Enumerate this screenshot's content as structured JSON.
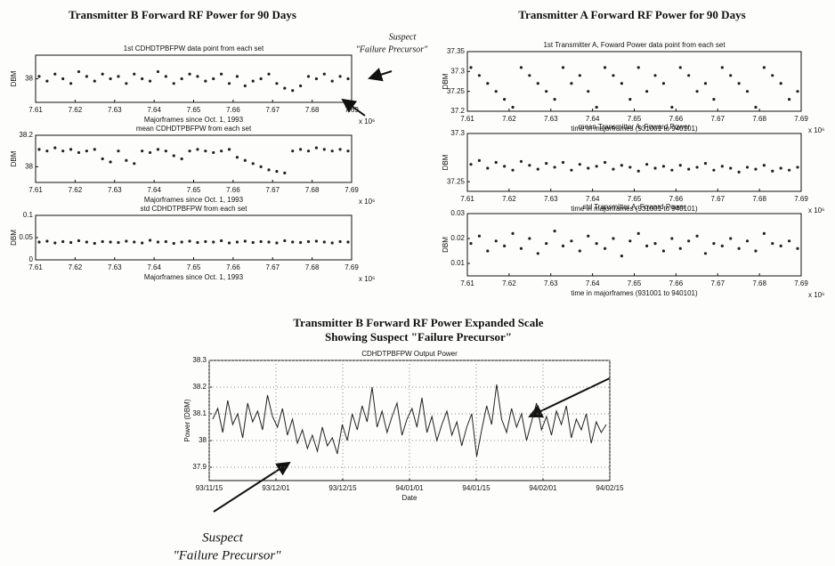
{
  "group_titles": [
    "Transmitter B Forward RF Power for 90 Days",
    "Transmitter A Forward RF Power for 90 Days",
    "Transmitter B Forward RF Power Expanded Scale",
    "Showing Suspect \"Failure Precursor\""
  ],
  "annotations": [
    "Suspect",
    "\"Failure Precursor\"",
    "Suspect",
    "\"Failure Precursor\""
  ],
  "chart_data": [
    {
      "type": "scatter",
      "title": "1st CDHDTPBFPW data point from each set",
      "ylabel": "DBM",
      "xlabel": "Majorframes since Oct. 1, 1993",
      "x_exponent": "x 10⁶",
      "xlim": [
        7.61,
        7.69
      ],
      "xticks": [
        7.61,
        7.62,
        7.63,
        7.64,
        7.65,
        7.66,
        7.67,
        7.68,
        7.69
      ],
      "ylim": [
        37.9,
        38.1
      ],
      "yticks": [
        38
      ],
      "color": "#222",
      "values": [
        38.01,
        37.99,
        38.02,
        38.0,
        37.98,
        38.03,
        38.01,
        37.99,
        38.02,
        38.0,
        38.01,
        37.98,
        38.02,
        38.0,
        37.99,
        38.03,
        38.01,
        37.98,
        38.0,
        38.02,
        38.01,
        37.99,
        38.0,
        38.02,
        37.98,
        38.01,
        37.97,
        37.99,
        38.0,
        38.02,
        37.98,
        37.96,
        37.95,
        37.97,
        38.01,
        38.0,
        38.02,
        37.99,
        38.01,
        38.0
      ]
    },
    {
      "type": "scatter",
      "title": "mean CDHDTPBFPW from each set",
      "ylabel": "DBM",
      "xlabel": "Majorframes since Oct. 1, 1993",
      "x_exponent": "x 10⁶",
      "xlim": [
        7.61,
        7.69
      ],
      "xticks": [
        7.61,
        7.62,
        7.63,
        7.64,
        7.65,
        7.66,
        7.67,
        7.68,
        7.69
      ],
      "ylim": [
        37.9,
        38.2
      ],
      "yticks": [
        38,
        38.2
      ],
      "color": "#222",
      "values": [
        38.11,
        38.1,
        38.12,
        38.1,
        38.11,
        38.09,
        38.1,
        38.11,
        38.05,
        38.03,
        38.1,
        38.04,
        38.02,
        38.1,
        38.09,
        38.11,
        38.1,
        38.07,
        38.05,
        38.1,
        38.11,
        38.1,
        38.09,
        38.1,
        38.11,
        38.06,
        38.04,
        38.02,
        38.0,
        37.98,
        37.97,
        37.96,
        38.1,
        38.11,
        38.1,
        38.12,
        38.11,
        38.1,
        38.11,
        38.1
      ]
    },
    {
      "type": "scatter",
      "title": "std CDHDTPBFPW from each set",
      "ylabel": "DBM",
      "xlabel": "Majorframes since Oct. 1, 1993",
      "x_exponent": "x 10⁶",
      "xlim": [
        7.61,
        7.69
      ],
      "xticks": [
        7.61,
        7.62,
        7.63,
        7.64,
        7.65,
        7.66,
        7.67,
        7.68,
        7.69
      ],
      "ylim": [
        0,
        0.1
      ],
      "yticks": [
        0,
        0.05,
        0.1
      ],
      "color": "#222",
      "values": [
        0.04,
        0.042,
        0.038,
        0.041,
        0.039,
        0.043,
        0.04,
        0.037,
        0.041,
        0.04,
        0.039,
        0.042,
        0.04,
        0.038,
        0.044,
        0.04,
        0.041,
        0.037,
        0.04,
        0.042,
        0.039,
        0.041,
        0.04,
        0.043,
        0.038,
        0.04,
        0.042,
        0.039,
        0.041,
        0.04,
        0.038,
        0.043,
        0.04,
        0.039,
        0.041,
        0.042,
        0.04,
        0.038,
        0.041,
        0.04
      ]
    },
    {
      "type": "scatter",
      "title": "1st Transmitter A, Foward Power data point from each set",
      "ylabel": "DBM",
      "xlabel": "time in majorframes (931001 to 940101)",
      "x_exponent": "x 10⁶",
      "xlim": [
        7.61,
        7.69
      ],
      "xticks": [
        7.61,
        7.62,
        7.63,
        7.64,
        7.65,
        7.66,
        7.67,
        7.68,
        7.69
      ],
      "ylim": [
        37.2,
        37.35
      ],
      "yticks": [
        37.2,
        37.25,
        37.3,
        37.35
      ],
      "color": "#222",
      "values": [
        37.31,
        37.29,
        37.27,
        37.25,
        37.23,
        37.21,
        37.31,
        37.29,
        37.27,
        37.25,
        37.23,
        37.31,
        37.27,
        37.29,
        37.25,
        37.21,
        37.31,
        37.29,
        37.27,
        37.23,
        37.31,
        37.25,
        37.29,
        37.27,
        37.21,
        37.31,
        37.29,
        37.25,
        37.27,
        37.23,
        37.31,
        37.29,
        37.27,
        37.25,
        37.21,
        37.31,
        37.29,
        37.27,
        37.23,
        37.25
      ]
    },
    {
      "type": "scatter",
      "title": "mean Transmitter A, Foward Power",
      "ylabel": "DBM",
      "xlabel": "time in majorframes (931001 to 940101)",
      "x_exponent": "x 10⁶",
      "xlim": [
        7.61,
        7.69
      ],
      "xticks": [
        7.61,
        7.62,
        7.63,
        7.64,
        7.65,
        7.66,
        7.67,
        7.68,
        7.69
      ],
      "ylim": [
        37.24,
        37.3
      ],
      "yticks": [
        37.25,
        37.3
      ],
      "color": "#222",
      "values": [
        37.268,
        37.272,
        37.264,
        37.27,
        37.266,
        37.262,
        37.271,
        37.267,
        37.263,
        37.269,
        37.265,
        37.27,
        37.262,
        37.268,
        37.264,
        37.266,
        37.27,
        37.263,
        37.267,
        37.265,
        37.261,
        37.268,
        37.264,
        37.266,
        37.262,
        37.267,
        37.263,
        37.265,
        37.269,
        37.262,
        37.266,
        37.264,
        37.26,
        37.265,
        37.263,
        37.267,
        37.261,
        37.264,
        37.262,
        37.265
      ]
    },
    {
      "type": "scatter",
      "title": "std Transmitter A, Foward Power",
      "ylabel": "DBM",
      "xlabel": "time in majorframes (931001 to 940101)",
      "x_exponent": "x 10⁶",
      "xlim": [
        7.61,
        7.69
      ],
      "xticks": [
        7.61,
        7.62,
        7.63,
        7.64,
        7.65,
        7.66,
        7.67,
        7.68,
        7.69
      ],
      "ylim": [
        0.005,
        0.03
      ],
      "yticks": [
        0.01,
        0.02,
        0.03
      ],
      "color": "#222",
      "values": [
        0.018,
        0.021,
        0.015,
        0.019,
        0.017,
        0.022,
        0.016,
        0.02,
        0.014,
        0.018,
        0.023,
        0.017,
        0.019,
        0.015,
        0.021,
        0.018,
        0.016,
        0.02,
        0.013,
        0.019,
        0.022,
        0.017,
        0.018,
        0.015,
        0.02,
        0.016,
        0.019,
        0.021,
        0.014,
        0.018,
        0.017,
        0.02,
        0.016,
        0.019,
        0.015,
        0.022,
        0.018,
        0.017,
        0.019,
        0.016
      ]
    },
    {
      "type": "line",
      "title": "CDHDTPBFPW Output Power",
      "ylabel": "Power (DBM)",
      "xlabel": "Date",
      "xlim": [
        0,
        6
      ],
      "xticks": [
        {
          "value": 0,
          "label": "93/11/15"
        },
        {
          "value": 1,
          "label": "93/12/01"
        },
        {
          "value": 2,
          "label": "93/12/15"
        },
        {
          "value": 3,
          "label": "94/01/01"
        },
        {
          "value": 4,
          "label": "94/01/15"
        },
        {
          "value": 5,
          "label": "94/02/01"
        },
        {
          "value": 6,
          "label": "94/02/15"
        }
      ],
      "ylim": [
        37.85,
        38.3
      ],
      "yticks": [
        37.9,
        38,
        38.1,
        38.2,
        38.3
      ],
      "grid": true,
      "color": "#222",
      "values": [
        38.08,
        38.12,
        38.03,
        38.15,
        38.06,
        38.1,
        38.01,
        38.14,
        38.07,
        38.11,
        38.04,
        38.17,
        38.09,
        38.05,
        38.12,
        38.02,
        38.08,
        37.99,
        38.04,
        37.97,
        38.02,
        37.96,
        38.05,
        37.98,
        38.01,
        37.95,
        38.06,
        38.0,
        38.1,
        38.04,
        38.13,
        38.07,
        38.2,
        38.05,
        38.11,
        38.03,
        38.09,
        38.14,
        38.02,
        38.08,
        38.12,
        38.05,
        38.16,
        38.03,
        38.09,
        38.0,
        38.06,
        38.11,
        38.02,
        38.07,
        37.98,
        38.05,
        38.1,
        37.94,
        38.04,
        38.13,
        38.06,
        38.21,
        38.08,
        38.03,
        38.12,
        38.05,
        38.1,
        38.0,
        38.07,
        38.14,
        38.04,
        38.09,
        38.02,
        38.11,
        38.06,
        38.13,
        38.01,
        38.08,
        38.04,
        38.1,
        37.99,
        38.07,
        38.03,
        38.06
      ]
    }
  ]
}
